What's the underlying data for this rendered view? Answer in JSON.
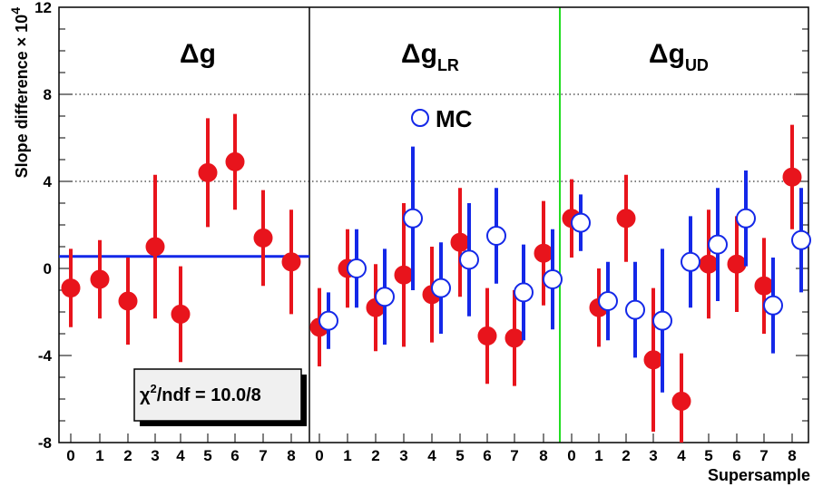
{
  "chart_data": {
    "type": "scatter",
    "xlabel": "Supersample",
    "ylabel": "Slope difference",
    "y_exponent_label": "10",
    "y_exponent_power": "4",
    "ylim": [
      -8,
      12
    ],
    "yticks": [
      -8,
      -4,
      0,
      4,
      8,
      12
    ],
    "grid_y": [
      4,
      8
    ],
    "panels": [
      {
        "title": "Δg",
        "subscript": "",
        "categories": [
          "0",
          "1",
          "2",
          "3",
          "4",
          "5",
          "6",
          "7",
          "8"
        ]
      },
      {
        "title": "Δg",
        "subscript": "LR",
        "categories": [
          "0",
          "1",
          "2",
          "3",
          "4",
          "5",
          "6",
          "7",
          "8"
        ]
      },
      {
        "title": "Δg",
        "subscript": "UD",
        "categories": [
          "0",
          "1",
          "2",
          "3",
          "4",
          "5",
          "6",
          "7",
          "8"
        ]
      }
    ],
    "series": [
      {
        "name": "",
        "color": "#e8141c",
        "marker": "filled-circle",
        "panels": [
          {
            "values": [
              -0.9,
              -0.5,
              -1.5,
              1.0,
              -2.1,
              4.4,
              4.9,
              1.4,
              0.3
            ],
            "errors": [
              1.8,
              1.8,
              2.0,
              3.3,
              2.2,
              2.5,
              2.2,
              2.2,
              2.4
            ]
          },
          {
            "values": [
              -2.7,
              0.0,
              -1.8,
              -0.3,
              -1.2,
              1.2,
              -3.1,
              -3.2,
              0.7
            ],
            "errors": [
              1.8,
              1.8,
              2.0,
              3.3,
              2.2,
              2.5,
              2.2,
              2.2,
              2.4
            ]
          },
          {
            "values": [
              2.3,
              -1.8,
              2.3,
              -4.2,
              -6.1,
              0.2,
              0.2,
              -0.8,
              4.2
            ],
            "errors": [
              1.8,
              1.8,
              2.0,
              3.3,
              2.2,
              2.5,
              2.2,
              2.2,
              2.4
            ]
          }
        ]
      },
      {
        "name": "MC",
        "color": "#1428e8",
        "marker": "open-circle",
        "panels": [
          null,
          {
            "values": [
              -2.4,
              0.0,
              -1.3,
              2.3,
              -0.9,
              0.4,
              1.5,
              -1.1,
              -0.5
            ],
            "errors": [
              1.3,
              1.8,
              2.2,
              3.3,
              2.1,
              2.6,
              2.2,
              2.2,
              2.3
            ]
          },
          {
            "values": [
              2.1,
              -1.5,
              -1.9,
              -2.4,
              0.3,
              1.1,
              2.3,
              -1.7,
              1.3
            ],
            "errors": [
              1.3,
              1.8,
              2.2,
              3.3,
              2.1,
              2.6,
              2.2,
              2.2,
              2.4
            ]
          }
        ]
      }
    ],
    "fit_line": {
      "panel": 0,
      "value": 0.55,
      "color": "#1428e8"
    },
    "chi2_box": {
      "text_prefix": "χ",
      "text_sup": "2",
      "text_rest": "/ndf = 10.0/8"
    },
    "legend": {
      "label": "MC",
      "placement": "upper-middle"
    }
  }
}
